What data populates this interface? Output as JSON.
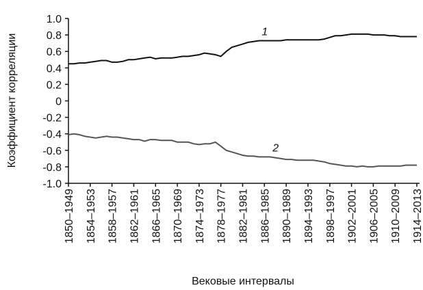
{
  "chart_data": {
    "type": "line",
    "xlabel": "Вековые интервалы",
    "ylabel": "Коэффициент корреляции",
    "categories": [
      "1850–1949",
      null,
      null,
      null,
      "1854–1953",
      null,
      null,
      null,
      "1858–1957",
      null,
      null,
      null,
      "1862–1961",
      null,
      null,
      null,
      "1866–1965",
      null,
      null,
      null,
      "1870–1969",
      null,
      null,
      null,
      "1874–1973",
      null,
      null,
      null,
      "1878–1977",
      null,
      null,
      null,
      "1882–1981",
      null,
      null,
      null,
      "1886–1985",
      null,
      null,
      null,
      "1890–1989",
      null,
      null,
      null,
      "1894–1993",
      null,
      null,
      null,
      "1898–1997",
      null,
      null,
      null,
      "1902–2001",
      null,
      null,
      null,
      "1906–2005",
      null,
      null,
      null,
      "1910–2009",
      null,
      null,
      null,
      "1914–2013"
    ],
    "series": [
      {
        "name": "1",
        "color": "#111111",
        "values": [
          0.45,
          0.45,
          0.46,
          0.46,
          0.47,
          0.48,
          0.49,
          0.49,
          0.47,
          0.47,
          0.48,
          0.5,
          0.5,
          0.51,
          0.52,
          0.53,
          0.51,
          0.52,
          0.52,
          0.52,
          0.53,
          0.54,
          0.54,
          0.55,
          0.56,
          0.58,
          0.57,
          0.56,
          0.54,
          0.6,
          0.65,
          0.67,
          0.69,
          0.71,
          0.72,
          0.73,
          0.73,
          0.73,
          0.73,
          0.73,
          0.74,
          0.74,
          0.74,
          0.74,
          0.74,
          0.74,
          0.74,
          0.75,
          0.77,
          0.79,
          0.79,
          0.8,
          0.81,
          0.81,
          0.81,
          0.81,
          0.8,
          0.8,
          0.8,
          0.79,
          0.79,
          0.78,
          0.78,
          0.78,
          0.78
        ]
      },
      {
        "name": "2",
        "color": "#555555",
        "values": [
          -0.41,
          -0.4,
          -0.41,
          -0.43,
          -0.44,
          -0.45,
          -0.44,
          -0.43,
          -0.44,
          -0.44,
          -0.45,
          -0.46,
          -0.47,
          -0.47,
          -0.49,
          -0.47,
          -0.47,
          -0.48,
          -0.48,
          -0.48,
          -0.5,
          -0.5,
          -0.5,
          -0.52,
          -0.53,
          -0.52,
          -0.52,
          -0.5,
          -0.55,
          -0.6,
          -0.62,
          -0.64,
          -0.66,
          -0.67,
          -0.67,
          -0.68,
          -0.68,
          -0.68,
          -0.69,
          -0.7,
          -0.71,
          -0.71,
          -0.72,
          -0.72,
          -0.72,
          -0.72,
          -0.73,
          -0.74,
          -0.76,
          -0.77,
          -0.78,
          -0.79,
          -0.79,
          -0.8,
          -0.79,
          -0.8,
          -0.8,
          -0.79,
          -0.79,
          -0.79,
          -0.79,
          -0.79,
          -0.78,
          -0.78,
          -0.78
        ]
      }
    ],
    "ylim": [
      -1,
      1
    ],
    "yticks": [
      {
        "value": 1,
        "label": "1.0"
      },
      0.8,
      0.6,
      0.4,
      0.2,
      0,
      -0.2,
      -0.4,
      -0.6,
      -0.8,
      {
        "value": -1,
        "label": "-1.0"
      }
    ],
    "grid": false
  }
}
